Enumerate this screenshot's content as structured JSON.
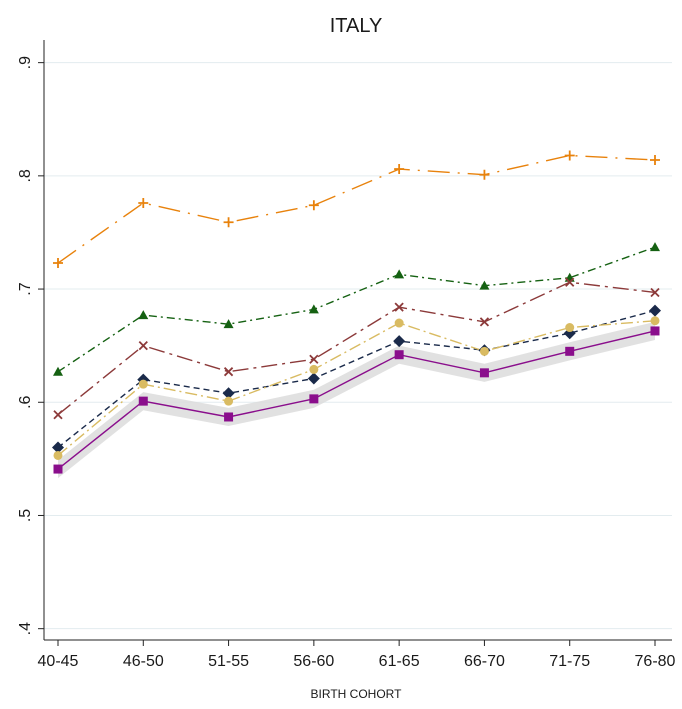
{
  "chart_data": {
    "type": "line",
    "title": "ITALY",
    "xlabel": "BIRTH COHORT",
    "ylabel": "",
    "categories": [
      "40-45",
      "46-50",
      "51-55",
      "56-60",
      "61-65",
      "66-70",
      "71-75",
      "76-80"
    ],
    "ylim": [
      0.39,
      0.92
    ],
    "yticks": [
      ".4",
      ".5",
      ".6",
      ".7",
      ".8",
      ".9"
    ],
    "ytick_values": [
      0.4,
      0.5,
      0.6,
      0.7,
      0.8,
      0.9
    ],
    "grid": true,
    "series": [
      {
        "values": [
          0.723,
          0.776,
          0.759,
          0.774,
          0.806,
          0.801,
          0.818,
          0.814
        ],
        "color": "#e8820c",
        "marker": "plus",
        "dash": "22,8,2,8"
      },
      {
        "values": [
          0.627,
          0.677,
          0.669,
          0.682,
          0.713,
          0.703,
          0.71,
          0.737
        ],
        "color": "#156112",
        "marker": "triangle",
        "dash": "8,4,2,4"
      },
      {
        "values": [
          0.589,
          0.65,
          0.627,
          0.638,
          0.684,
          0.671,
          0.706,
          0.697
        ],
        "color": "#8c3a3a",
        "marker": "x",
        "dash": "16,5,3,5"
      },
      {
        "values": [
          0.56,
          0.62,
          0.608,
          0.621,
          0.654,
          0.646,
          0.661,
          0.681
        ],
        "color": "#1a2a4a",
        "marker": "diamond",
        "dash": "6,4"
      },
      {
        "values": [
          0.553,
          0.616,
          0.601,
          0.629,
          0.67,
          0.645,
          0.666,
          0.672
        ],
        "color": "#d9bb62",
        "marker": "circle",
        "dash": "12,4,2,4"
      },
      {
        "values": [
          0.541,
          0.601,
          0.587,
          0.603,
          0.642,
          0.626,
          0.645,
          0.663
        ],
        "color": "#8a0e8c",
        "marker": "square",
        "dash": "",
        "band": 0.008
      }
    ]
  }
}
